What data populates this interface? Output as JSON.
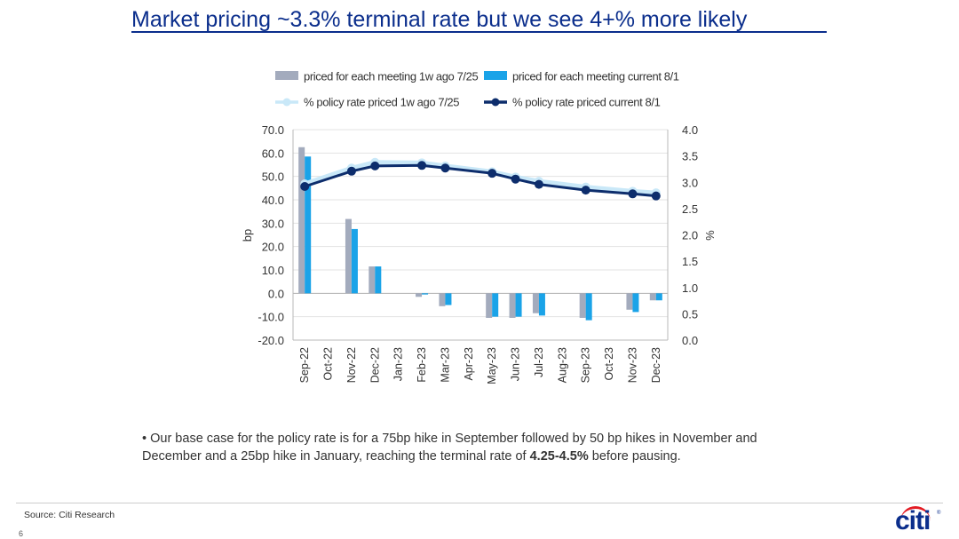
{
  "title": "Market pricing ~3.3% terminal rate but we see 4+% more likely",
  "bullet": {
    "marker": "•",
    "text_before": "Our base case for the policy rate is for a 75bp hike in September followed by 50 bp hikes in November and December and a 25bp hike in January, reaching the terminal rate of",
    "bold": "4.25-4.5%",
    "text_after": "before pausing."
  },
  "footer": {
    "source": "Source: Citi Research",
    "page_number": "6",
    "logo": "citi"
  },
  "colors": {
    "title": "#0b2e8c",
    "bar_prior": "#a3abbd",
    "bar_current": "#1aa3e8",
    "line_prior": "#c9e8f8",
    "line_current": "#0d2d6c",
    "logo": "#0b2e8c",
    "logo_arc": "#e31b23"
  },
  "chart_data": {
    "type": "bar",
    "categories": [
      "Sep-22",
      "Oct-22",
      "Nov-22",
      "Dec-22",
      "Jan-23",
      "Feb-23",
      "Mar-23",
      "Apr-23",
      "May-23",
      "Jun-23",
      "Jul-23",
      "Aug-23",
      "Sep-23",
      "Oct-23",
      "Nov-23",
      "Dec-23"
    ],
    "ylabel_left": "bp",
    "ylabel_right": "%",
    "ylim_left": [
      -20,
      70
    ],
    "yticks_left": [
      "70.0",
      "60.0",
      "50.0",
      "40.0",
      "30.0",
      "20.0",
      "10.0",
      "0.0",
      "-10.0",
      "-20.0"
    ],
    "ylim_right": [
      0,
      4
    ],
    "yticks_right": [
      "4.0",
      "3.5",
      "3.0",
      "2.5",
      "2.0",
      "1.5",
      "1.0",
      "0.5",
      "0.0"
    ],
    "legend_position": "top",
    "legend": [
      {
        "label": "priced for each meeting  1w ago 7/25",
        "kind": "bar",
        "color_key": "bar_prior"
      },
      {
        "label": "priced for each meeting current 8/1",
        "kind": "bar",
        "color_key": "bar_current"
      },
      {
        "label": "% policy rate priced 1w ago 7/25",
        "kind": "line",
        "color_key": "line_prior"
      },
      {
        "label": "% policy rate priced current 8/1",
        "kind": "line",
        "color_key": "line_current"
      }
    ],
    "bar_series": [
      {
        "name": "priced for each meeting  1w ago 7/25",
        "axis": "left",
        "values": [
          62.5,
          null,
          31.8,
          11.5,
          null,
          -1.5,
          -5.5,
          null,
          -10.5,
          -10.5,
          -8.5,
          null,
          -10.5,
          null,
          -7.0,
          -3.0
        ]
      },
      {
        "name": "priced for each meeting current 8/1",
        "axis": "left",
        "values": [
          58.5,
          null,
          27.5,
          11.5,
          null,
          -0.5,
          -5.0,
          null,
          -10.0,
          -10.0,
          -9.5,
          null,
          -11.5,
          null,
          -8.0,
          -3.0
        ]
      }
    ],
    "line_series": [
      {
        "name": "% policy rate priced 1w ago 7/25",
        "axis": "right",
        "points": [
          [
            "Sep-22",
            2.97
          ],
          [
            "Nov-22",
            3.27
          ],
          [
            "Dec-22",
            3.38
          ],
          [
            "Feb-23",
            3.37
          ],
          [
            "Mar-23",
            3.31
          ],
          [
            "May-23",
            3.2
          ],
          [
            "Jun-23",
            3.1
          ],
          [
            "Jul-23",
            3.02
          ],
          [
            "Sep-23",
            2.91
          ],
          [
            "Nov-23",
            2.83
          ],
          [
            "Dec-23",
            2.8
          ]
        ]
      },
      {
        "name": "% policy rate priced current 8/1",
        "axis": "right",
        "points": [
          [
            "Sep-22",
            2.92
          ],
          [
            "Nov-22",
            3.21
          ],
          [
            "Dec-22",
            3.31
          ],
          [
            "Feb-23",
            3.32
          ],
          [
            "Mar-23",
            3.27
          ],
          [
            "May-23",
            3.17
          ],
          [
            "Jun-23",
            3.06
          ],
          [
            "Jul-23",
            2.96
          ],
          [
            "Sep-23",
            2.85
          ],
          [
            "Nov-23",
            2.78
          ],
          [
            "Dec-23",
            2.74
          ]
        ]
      }
    ]
  }
}
